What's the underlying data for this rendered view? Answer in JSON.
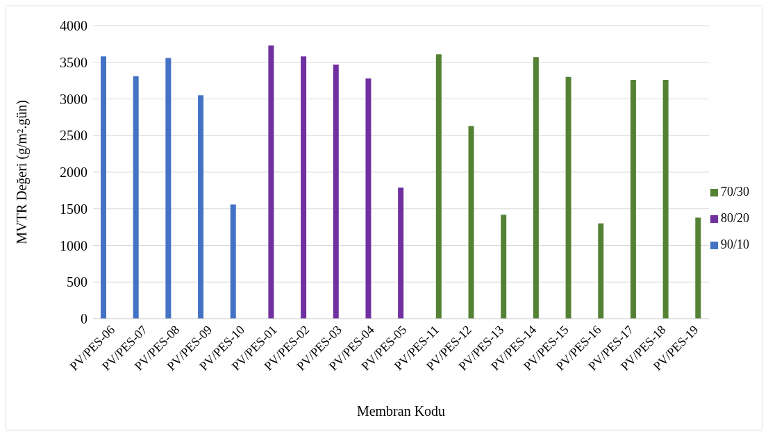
{
  "chart_data": {
    "type": "bar",
    "xlabel": "Membran Kodu",
    "ylabel": "MVTR Değeri (g/m².gün)",
    "categories": [
      "PV/PES-06",
      "PV/PES-07",
      "PV/PES-08",
      "PV/PES-09",
      "PV/PES-10",
      "PV/PES-01",
      "PV/PES-02",
      "PV/PES-03",
      "PV/PES-04",
      "PV/PES-05",
      "PV/PES-11",
      "PV/PES-12",
      "PV/PES-13",
      "PV/PES-14",
      "PV/PES-15",
      "PV/PES-16",
      "PV/PES-17",
      "PV/PES-18",
      "PV/PES-19"
    ],
    "series": [
      {
        "name": "90/10",
        "color": "#4472c4",
        "values": [
          3580,
          3310,
          3560,
          3050,
          1560,
          null,
          null,
          null,
          null,
          null,
          null,
          null,
          null,
          null,
          null,
          null,
          null,
          null,
          null
        ]
      },
      {
        "name": "80/20",
        "color": "#7030a0",
        "values": [
          null,
          null,
          null,
          null,
          null,
          3730,
          3580,
          3470,
          3280,
          1790,
          null,
          null,
          null,
          null,
          null,
          null,
          null,
          null,
          null
        ]
      },
      {
        "name": "70/30",
        "color": "#548235",
        "values": [
          null,
          null,
          null,
          null,
          null,
          null,
          null,
          null,
          null,
          null,
          3610,
          2630,
          1420,
          3570,
          3300,
          1300,
          3260,
          3260,
          1380
        ]
      }
    ],
    "ylim": [
      0,
      4000
    ],
    "yticks": [
      0,
      500,
      1000,
      1500,
      2000,
      2500,
      3000,
      3500,
      4000
    ],
    "grid": "y",
    "legend": "right"
  }
}
